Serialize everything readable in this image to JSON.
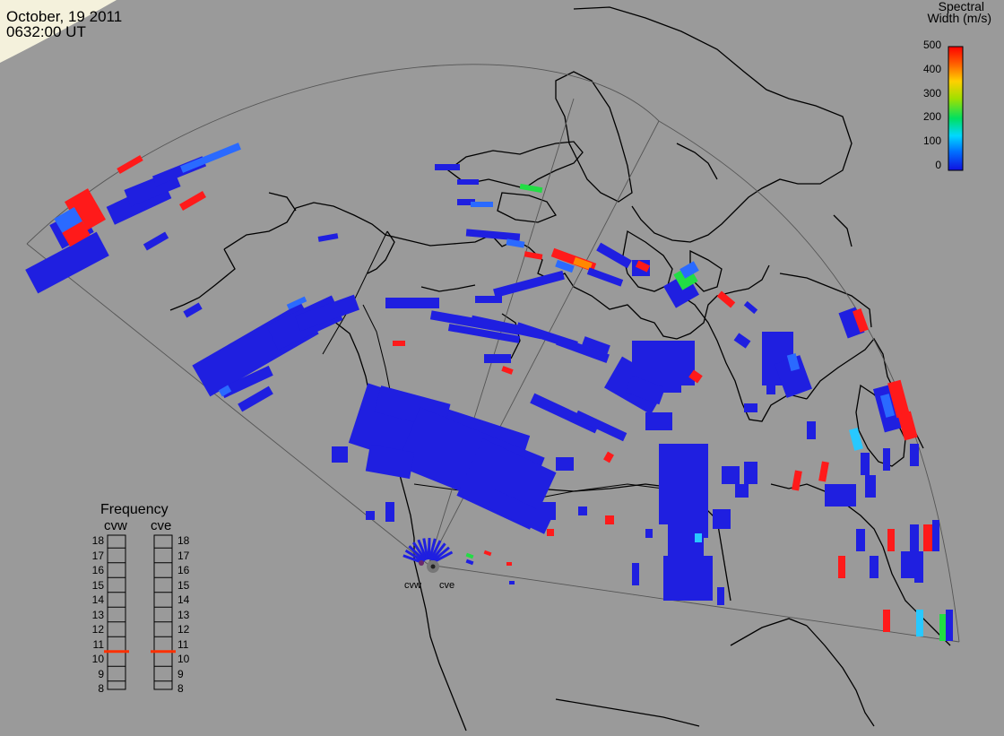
{
  "header": {
    "date": "October, 19 2011",
    "time": "0632:00 UT"
  },
  "colorbar": {
    "title_line1": "Spectral",
    "title_line2": "Width (m/s)",
    "ticks": [
      "500",
      "400",
      "300",
      "200",
      "100",
      "0"
    ],
    "range": [
      0,
      500
    ],
    "colors": [
      "#1010e0",
      "#0088ff",
      "#00d8ff",
      "#00e060",
      "#a0e000",
      "#ffd000",
      "#ff7000",
      "#ff0000"
    ]
  },
  "frequency_panel": {
    "title": "Frequency",
    "radars": [
      "cvw",
      "cve"
    ],
    "ticks": [
      "18",
      "17",
      "16",
      "15",
      "14",
      "13",
      "12",
      "11",
      "10",
      "9",
      "8"
    ],
    "values_mhz": [
      10.5,
      10.5
    ],
    "marker_color": "#ff3000"
  },
  "radar_sites": [
    "cvw",
    "cve"
  ],
  "colors": {
    "background": "#9a9a9a",
    "coast": "#000000",
    "fov_line": "#444444",
    "scatter_default": "#1f1fe0"
  }
}
